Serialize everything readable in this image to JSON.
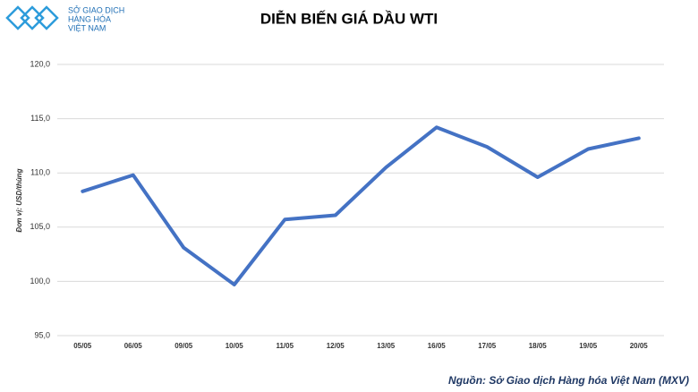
{
  "logo": {
    "lines": [
      "SỞ GIAO DỊCH",
      "HÀNG HÓA",
      "VIỆT NAM"
    ]
  },
  "chart_data": {
    "type": "line",
    "title": "DIỄN BIẾN GIÁ DẦU WTI",
    "y_label": "Đơn vị: USD/thùng",
    "source": "Nguồn: Sở Giao dịch Hàng hóa Việt Nam (MXV)",
    "categories": [
      "05/05",
      "06/05",
      "09/05",
      "10/05",
      "11/05",
      "12/05",
      "13/05",
      "16/05",
      "17/05",
      "18/05",
      "19/05",
      "20/05"
    ],
    "values": [
      108.3,
      109.8,
      103.1,
      99.7,
      105.7,
      106.1,
      110.5,
      114.2,
      112.4,
      109.6,
      112.2,
      113.2
    ],
    "color": "#4472c4",
    "ylim": [
      95,
      120
    ],
    "yticks": [
      {
        "value": 95,
        "label": "95,0"
      },
      {
        "value": 100,
        "label": "100,0"
      },
      {
        "value": 105,
        "label": "105,0"
      },
      {
        "value": 110,
        "label": "110,0"
      },
      {
        "value": 115,
        "label": "115,0"
      },
      {
        "value": 120,
        "label": "120,0"
      }
    ],
    "grid": true
  }
}
